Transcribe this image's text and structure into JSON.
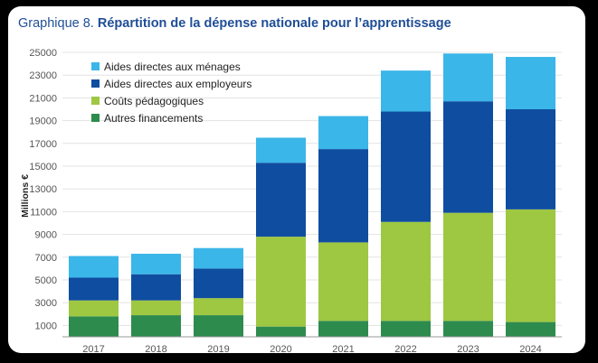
{
  "title": {
    "lead": "Graphique 8.",
    "rest": "Répartition de la dépense nationale pour l’apprentissage"
  },
  "chart_data": {
    "type": "bar",
    "stacked": true,
    "ylabel": "Millions €",
    "xlabel": "",
    "ylim": [
      0,
      25000
    ],
    "yticks": [
      1000,
      3000,
      5000,
      7000,
      9000,
      11000,
      13000,
      15000,
      17000,
      19000,
      21000,
      23000,
      25000
    ],
    "grid": true,
    "legend_position": "top-left",
    "categories": [
      "2017",
      "2018",
      "2019",
      "2020",
      "2021",
      "2022",
      "2023",
      "2024"
    ],
    "series": [
      {
        "name": "Autres financements",
        "color": "#2e8b4e",
        "values": [
          1800,
          1900,
          1900,
          900,
          1400,
          1400,
          1400,
          1300
        ]
      },
      {
        "name": "Coûts pédagogiques",
        "color": "#9ec742",
        "values": [
          1400,
          1300,
          1500,
          7900,
          6900,
          8700,
          9500,
          9900
        ]
      },
      {
        "name": "Aides directes aux employeurs",
        "color": "#0f4da0",
        "values": [
          2000,
          2300,
          2600,
          6500,
          8200,
          9700,
          9800,
          8800
        ]
      },
      {
        "name": "Aides directes aux ménages",
        "color": "#3bb6e8",
        "values": [
          1900,
          1800,
          1800,
          2200,
          2900,
          3600,
          4200,
          4600
        ]
      }
    ]
  }
}
